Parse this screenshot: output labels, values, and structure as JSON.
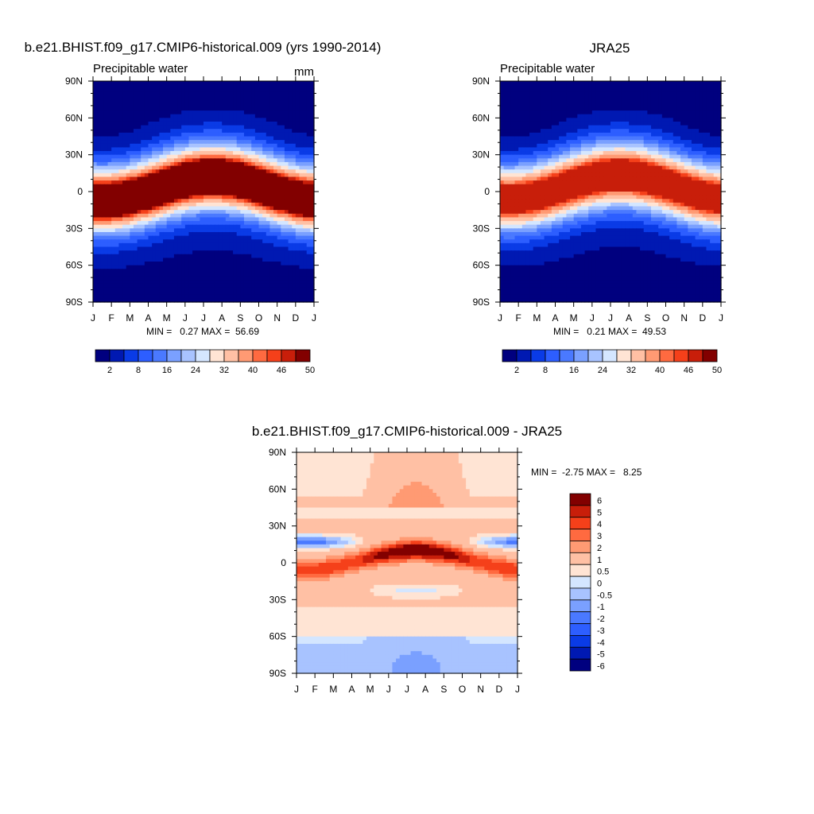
{
  "chart_data": [
    {
      "type": "heatmap",
      "title": "b.e21.BHIST.f09_g17.CMIP6-historical.009 (yrs 1990-2014)",
      "subtitle": "Precipitable water",
      "units": "mm",
      "x_ticks": [
        "J",
        "F",
        "M",
        "A",
        "M",
        "J",
        "J",
        "A",
        "S",
        "O",
        "N",
        "D",
        "J"
      ],
      "y_ticks": [
        "90N",
        "60N",
        "30N",
        "0",
        "30S",
        "60S",
        "90S"
      ],
      "xlim": [
        0,
        12
      ],
      "ylim": [
        -90,
        90
      ],
      "stats": "MIN =   0.27 MAX =  56.69",
      "min": 0.27,
      "max": 56.69,
      "colorbar": {
        "levels": [
          0,
          4,
          8,
          12,
          16,
          20,
          24,
          28,
          32,
          36,
          40,
          44,
          46,
          48,
          50
        ],
        "labels": [
          "2",
          "8",
          "16",
          "24",
          "32",
          "40",
          "46",
          "50"
        ],
        "colors": [
          "#00007f",
          "#0019b2",
          "#0a3be6",
          "#2d5eff",
          "#4a79ff",
          "#7aa0ff",
          "#a8c3ff",
          "#d4e6ff",
          "#ffe4d4",
          "#ffc0a4",
          "#ff9a73",
          "#ff6a40",
          "#f5401a",
          "#c81e0a",
          "#820000"
        ]
      },
      "model": {
        "peak": 56.5,
        "itcz_offset": -1.5,
        "wet_factor": 1.0
      }
    },
    {
      "type": "heatmap",
      "title": "JRA25",
      "subtitle": "Precipitable water",
      "units": "",
      "x_ticks": [
        "J",
        "F",
        "M",
        "A",
        "M",
        "J",
        "J",
        "A",
        "S",
        "O",
        "N",
        "D",
        "J"
      ],
      "y_ticks": [
        "90N",
        "60N",
        "30N",
        "0",
        "30S",
        "60S",
        "90S"
      ],
      "xlim": [
        0,
        12
      ],
      "ylim": [
        -90,
        90
      ],
      "stats": "MIN =   0.21 MAX =  49.53",
      "min": 0.21,
      "max": 49.53,
      "colorbar": {
        "levels": [
          0,
          4,
          8,
          12,
          16,
          20,
          24,
          28,
          32,
          36,
          40,
          44,
          46,
          48,
          50
        ],
        "labels": [
          "2",
          "8",
          "16",
          "24",
          "32",
          "40",
          "46",
          "50"
        ],
        "colors": [
          "#00007f",
          "#0019b2",
          "#0a3be6",
          "#2d5eff",
          "#4a79ff",
          "#7aa0ff",
          "#a8c3ff",
          "#d4e6ff",
          "#ffe4d4",
          "#ffc0a4",
          "#ff9a73",
          "#ff6a40",
          "#f5401a",
          "#c81e0a",
          "#820000"
        ]
      },
      "model": {
        "peak": 49.5,
        "itcz_offset": 0,
        "wet_factor": 0.95
      }
    },
    {
      "type": "heatmap",
      "title": "b.e21.BHIST.f09_g17.CMIP6-historical.009 - JRA25",
      "subtitle": "",
      "units": "",
      "x_ticks": [
        "J",
        "F",
        "M",
        "A",
        "M",
        "J",
        "J",
        "A",
        "S",
        "O",
        "N",
        "D",
        "J"
      ],
      "y_ticks": [
        "90N",
        "60N",
        "30N",
        "0",
        "30S",
        "60S",
        "90S"
      ],
      "xlim": [
        0,
        12
      ],
      "ylim": [
        -90,
        90
      ],
      "stats": "MIN =  -2.75 MAX =   8.25",
      "min": -2.75,
      "max": 8.25,
      "colorbar": {
        "levels": [
          -6,
          -5,
          -4,
          -3,
          -2,
          -1,
          -0.5,
          0,
          0.5,
          1,
          2,
          3,
          4,
          5,
          6
        ],
        "labels": [
          "6",
          "5",
          "4",
          "3",
          "2",
          "1",
          "0.5",
          "0",
          "-0.5",
          "-1",
          "-2",
          "-3",
          "-4",
          "-5",
          "-6"
        ],
        "colors": [
          "#00007f",
          "#0019b2",
          "#0a3be6",
          "#2d5eff",
          "#4a79ff",
          "#7aa0ff",
          "#a8c3ff",
          "#d4e6ff",
          "#ffe4d4",
          "#ffc0a4",
          "#ff9a73",
          "#ff6a40",
          "#f5401a",
          "#c81e0a",
          "#820000"
        ]
      }
    }
  ]
}
